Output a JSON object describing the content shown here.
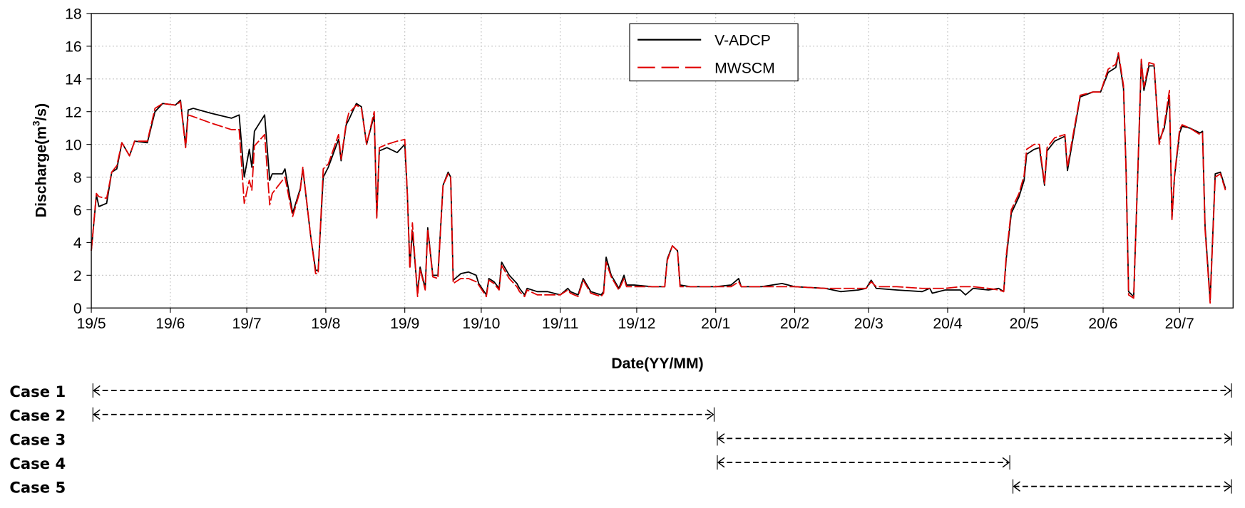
{
  "chart_data": {
    "type": "line",
    "xlabel": "Date(YY/MM)",
    "ylabel_main": "Discharge(m",
    "ylabel_sup": "3",
    "ylabel_tail": "/s)",
    "xlim": [
      "2019-05-01",
      "2020-07-22"
    ],
    "ylim": [
      0,
      18
    ],
    "yticks": [
      0,
      2,
      4,
      6,
      8,
      10,
      12,
      14,
      16,
      18
    ],
    "xticks": [
      {
        "date": "2019-05-01",
        "label": "19/5"
      },
      {
        "date": "2019-06-01",
        "label": "19/6"
      },
      {
        "date": "2019-07-01",
        "label": "19/7"
      },
      {
        "date": "2019-08-01",
        "label": "19/8"
      },
      {
        "date": "2019-09-01",
        "label": "19/9"
      },
      {
        "date": "2019-10-01",
        "label": "19/10"
      },
      {
        "date": "2019-11-01",
        "label": "19/11"
      },
      {
        "date": "2019-12-01",
        "label": "19/12"
      },
      {
        "date": "2020-01-01",
        "label": "20/1"
      },
      {
        "date": "2020-02-01",
        "label": "20/2"
      },
      {
        "date": "2020-03-01",
        "label": "20/3"
      },
      {
        "date": "2020-04-01",
        "label": "20/4"
      },
      {
        "date": "2020-05-01",
        "label": "20/5"
      },
      {
        "date": "2020-06-01",
        "label": "20/6"
      },
      {
        "date": "2020-07-01",
        "label": "20/7"
      }
    ],
    "grid": true,
    "legend_position": "top-center",
    "x": [
      "2019-05-01",
      "2019-05-03",
      "2019-05-04",
      "2019-05-07",
      "2019-05-09",
      "2019-05-11",
      "2019-05-13",
      "2019-05-16",
      "2019-05-18",
      "2019-05-23",
      "2019-05-26",
      "2019-05-29",
      "2019-06-03",
      "2019-06-05",
      "2019-06-07",
      "2019-06-08",
      "2019-06-10",
      "2019-06-17",
      "2019-06-25",
      "2019-06-28",
      "2019-06-30",
      "2019-07-02",
      "2019-07-03",
      "2019-07-04",
      "2019-07-08",
      "2019-07-10",
      "2019-07-11",
      "2019-07-15",
      "2019-07-16",
      "2019-07-19",
      "2019-07-22",
      "2019-07-23",
      "2019-07-26",
      "2019-07-28",
      "2019-07-29",
      "2019-07-31",
      "2019-08-02",
      "2019-08-06",
      "2019-08-07",
      "2019-08-09",
      "2019-08-10",
      "2019-08-13",
      "2019-08-15",
      "2019-08-17",
      "2019-08-20",
      "2019-08-21",
      "2019-08-22",
      "2019-08-25",
      "2019-08-29",
      "2019-09-01",
      "2019-09-02",
      "2019-09-03",
      "2019-09-04",
      "2019-09-06",
      "2019-09-07",
      "2019-09-09",
      "2019-09-10",
      "2019-09-12",
      "2019-09-14",
      "2019-09-16",
      "2019-09-18",
      "2019-09-19",
      "2019-09-20",
      "2019-09-23",
      "2019-09-26",
      "2019-09-29",
      "2019-09-30",
      "2019-10-03",
      "2019-10-04",
      "2019-10-06",
      "2019-10-08",
      "2019-10-09",
      "2019-10-12",
      "2019-10-15",
      "2019-10-16",
      "2019-10-18",
      "2019-10-19",
      "2019-10-23",
      "2019-10-27",
      "2019-11-01",
      "2019-11-04",
      "2019-11-05",
      "2019-11-08",
      "2019-11-10",
      "2019-11-13",
      "2019-11-17",
      "2019-11-18",
      "2019-11-19",
      "2019-11-21",
      "2019-11-24",
      "2019-11-26",
      "2019-11-27",
      "2019-11-30",
      "2019-12-07",
      "2019-12-12",
      "2019-12-13",
      "2019-12-15",
      "2019-12-17",
      "2019-12-18",
      "2019-12-22",
      "2020-01-01",
      "2020-01-07",
      "2020-01-10",
      "2020-01-11",
      "2020-01-19",
      "2020-01-27",
      "2020-02-01",
      "2020-02-13",
      "2020-02-19",
      "2020-02-26",
      "2020-02-29",
      "2020-03-02",
      "2020-03-04",
      "2020-03-12",
      "2020-03-22",
      "2020-03-25",
      "2020-03-26",
      "2020-03-31",
      "2020-04-06",
      "2020-04-08",
      "2020-04-11",
      "2020-04-17",
      "2020-04-21",
      "2020-04-23",
      "2020-04-24",
      "2020-04-26",
      "2020-04-29",
      "2020-05-01",
      "2020-05-02",
      "2020-05-05",
      "2020-05-07",
      "2020-05-09",
      "2020-05-10",
      "2020-05-13",
      "2020-05-17",
      "2020-05-18",
      "2020-05-20",
      "2020-05-23",
      "2020-05-28",
      "2020-05-31",
      "2020-06-03",
      "2020-06-06",
      "2020-06-07",
      "2020-06-09",
      "2020-06-10",
      "2020-06-11",
      "2020-06-13",
      "2020-06-15",
      "2020-06-16",
      "2020-06-17",
      "2020-06-19",
      "2020-06-21",
      "2020-06-23",
      "2020-06-25",
      "2020-06-27",
      "2020-06-28",
      "2020-06-29",
      "2020-07-01",
      "2020-07-02",
      "2020-07-05",
      "2020-07-09",
      "2020-07-10",
      "2020-07-11",
      "2020-07-13",
      "2020-07-15",
      "2020-07-17",
      "2020-07-19"
    ],
    "series": [
      {
        "name": "V-ADCP",
        "color": "#000000",
        "style": "solid",
        "values": [
          3.5,
          6.9,
          6.2,
          6.4,
          8.3,
          8.5,
          10.1,
          9.3,
          10.2,
          10.1,
          12.0,
          12.5,
          12.4,
          12.7,
          9.9,
          12.1,
          12.2,
          11.9,
          11.6,
          11.8,
          8.0,
          9.7,
          8.6,
          10.8,
          11.8,
          7.8,
          8.2,
          8.2,
          8.5,
          5.8,
          7.3,
          8.5,
          4.5,
          2.3,
          2.3,
          8.0,
          8.6,
          10.3,
          9.0,
          11.2,
          11.5,
          12.5,
          12.3,
          10.0,
          11.8,
          5.6,
          9.6,
          9.8,
          9.5,
          10.0,
          7.0,
          2.5,
          4.7,
          0.9,
          2.5,
          1.2,
          4.9,
          2.0,
          2.0,
          7.5,
          8.3,
          8.0,
          1.7,
          2.1,
          2.2,
          2.0,
          1.5,
          0.8,
          1.8,
          1.6,
          1.2,
          2.8,
          2.0,
          1.5,
          1.2,
          0.8,
          1.2,
          1.0,
          1.0,
          0.8,
          1.2,
          1.0,
          0.8,
          1.8,
          1.0,
          0.8,
          1.0,
          3.1,
          2.0,
          1.2,
          2.0,
          1.4,
          1.4,
          1.3,
          1.3,
          3.0,
          3.8,
          3.5,
          1.4,
          1.3,
          1.3,
          1.4,
          1.8,
          1.3,
          1.3,
          1.5,
          1.3,
          1.2,
          1.0,
          1.1,
          1.2,
          1.7,
          1.2,
          1.1,
          1.0,
          1.2,
          0.9,
          1.1,
          1.1,
          0.8,
          1.2,
          1.1,
          1.2,
          1.0,
          3.0,
          5.8,
          6.8,
          7.8,
          9.4,
          9.7,
          9.8,
          7.5,
          9.6,
          10.2,
          10.5,
          8.4,
          10.2,
          12.9,
          13.2,
          13.2,
          14.4,
          14.7,
          15.5,
          13.4,
          8.5,
          1.0,
          0.7,
          10.0,
          15.1,
          13.3,
          14.8,
          14.8,
          10.2,
          11.0,
          13.0,
          5.5,
          8.0,
          10.7,
          11.1,
          11.0,
          10.7,
          10.8,
          5.0,
          0.5,
          8.2,
          8.3,
          7.3
        ]
      },
      {
        "name": "MWSCM",
        "color": "#e00000",
        "style": "dashed",
        "values": [
          3.5,
          7.0,
          6.8,
          6.7,
          8.3,
          8.7,
          10.1,
          9.3,
          10.2,
          10.2,
          12.2,
          12.5,
          12.4,
          12.6,
          9.8,
          11.8,
          11.7,
          11.3,
          10.9,
          10.9,
          6.4,
          7.8,
          7.2,
          9.9,
          10.6,
          6.3,
          7.0,
          7.8,
          8.0,
          5.6,
          7.2,
          8.6,
          4.5,
          2.1,
          2.1,
          8.5,
          8.8,
          10.6,
          9.1,
          11.3,
          11.9,
          12.4,
          12.2,
          10.0,
          12.0,
          5.5,
          9.8,
          10.0,
          10.2,
          10.3,
          7.0,
          2.4,
          5.2,
          0.7,
          2.4,
          1.1,
          4.8,
          1.9,
          1.8,
          7.5,
          8.2,
          8.0,
          1.5,
          1.8,
          1.8,
          1.6,
          1.4,
          0.7,
          1.7,
          1.5,
          1.1,
          2.6,
          1.8,
          1.3,
          1.0,
          0.7,
          1.1,
          0.8,
          0.8,
          0.8,
          1.1,
          0.9,
          0.7,
          1.7,
          0.9,
          0.7,
          0.9,
          2.8,
          1.9,
          1.1,
          1.8,
          1.3,
          1.3,
          1.3,
          1.3,
          2.9,
          3.8,
          3.5,
          1.3,
          1.3,
          1.3,
          1.3,
          1.6,
          1.3,
          1.3,
          1.3,
          1.3,
          1.2,
          1.2,
          1.2,
          1.2,
          1.6,
          1.3,
          1.3,
          1.2,
          1.2,
          1.2,
          1.2,
          1.3,
          1.3,
          1.3,
          1.2,
          1.1,
          1.0,
          3.2,
          6.0,
          7.0,
          8.1,
          9.7,
          10.0,
          10.0,
          7.6,
          9.8,
          10.4,
          10.6,
          8.6,
          10.4,
          13.0,
          13.2,
          13.2,
          14.6,
          14.9,
          15.6,
          13.6,
          8.3,
          0.8,
          0.6,
          10.2,
          15.2,
          13.5,
          15.0,
          14.9,
          10.0,
          11.2,
          13.3,
          5.4,
          8.1,
          10.9,
          11.2,
          11.0,
          10.6,
          10.7,
          4.8,
          0.3,
          8.0,
          8.2,
          7.2
        ]
      }
    ]
  },
  "legend": {
    "items": [
      {
        "label": "V-ADCP",
        "color": "#000000"
      },
      {
        "label": "MWSCM",
        "color": "#e00000"
      }
    ]
  },
  "cases": [
    {
      "label": "Case 1",
      "start": "2019-05-01",
      "end": "2020-07-22"
    },
    {
      "label": "Case 2",
      "start": "2019-05-01",
      "end": "2020-01-01"
    },
    {
      "label": "Case 3",
      "start": "2020-01-01",
      "end": "2020-07-22"
    },
    {
      "label": "Case 4",
      "start": "2020-01-01",
      "end": "2020-04-26"
    },
    {
      "label": "Case 5",
      "start": "2020-04-26",
      "end": "2020-07-22"
    }
  ]
}
